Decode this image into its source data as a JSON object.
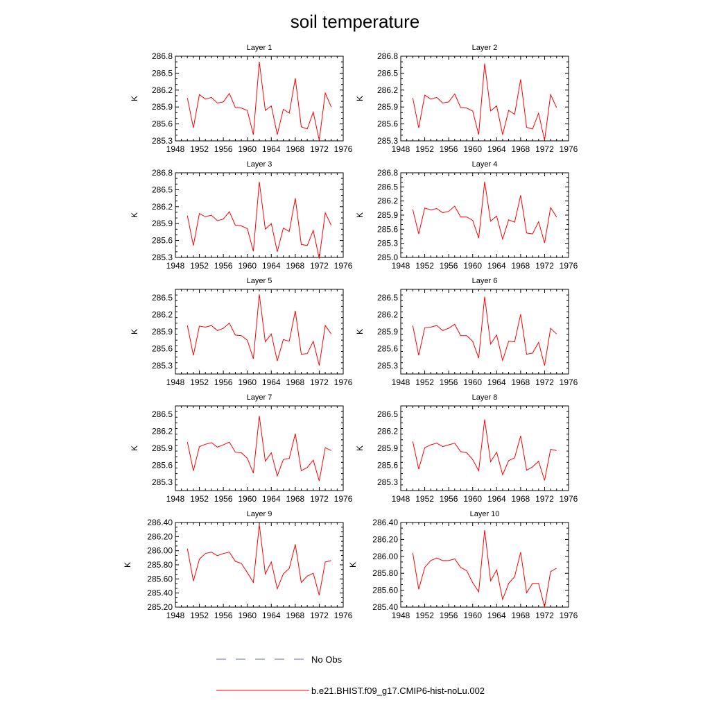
{
  "title": "soil temperature",
  "legend": {
    "entries": [
      {
        "label": "No Obs",
        "color": "#6666cc",
        "style": "dashed"
      },
      {
        "label": "b.e21.BHIST.f09_g17.CMIP6-hist-noLu.002",
        "color": "#ff0000",
        "style": "solid"
      }
    ],
    "placement": "bottom-center"
  },
  "chart_data": [
    {
      "type": "line",
      "title": "Layer 1",
      "ylabel": "K",
      "xlim": [
        1948,
        1976
      ],
      "xticks": [
        "1948",
        "1952",
        "1956",
        "1960",
        "1964",
        "1968",
        "1972",
        "1976"
      ],
      "ylim": [
        285.3,
        286.8
      ],
      "yticks": [
        "285.3",
        "285.6",
        "285.9",
        "286.2",
        "286.5",
        "286.8"
      ],
      "grid": false,
      "x": [
        1950,
        1951,
        1952,
        1953,
        1954,
        1955,
        1956,
        1957,
        1958,
        1959,
        1960,
        1961,
        1962,
        1963,
        1964,
        1965,
        1966,
        1967,
        1968,
        1969,
        1970,
        1971,
        1972,
        1973,
        1974
      ],
      "series": [
        {
          "name": "b.e21.BHIST.f09_g17.CMIP6-hist-noLu.002",
          "color": "#ff0000",
          "values": [
            286.06,
            285.53,
            286.12,
            286.04,
            286.07,
            285.97,
            285.99,
            286.14,
            285.89,
            285.88,
            285.84,
            285.41,
            286.7,
            285.84,
            285.92,
            285.41,
            285.86,
            285.79,
            286.41,
            285.55,
            285.51,
            285.81,
            285.31,
            286.15,
            285.9
          ]
        }
      ]
    },
    {
      "type": "line",
      "title": "Layer 2",
      "ylabel": "K",
      "xlim": [
        1948,
        1976
      ],
      "xticks": [
        "1948",
        "1952",
        "1956",
        "1960",
        "1964",
        "1968",
        "1972",
        "1976"
      ],
      "ylim": [
        285.3,
        286.8
      ],
      "yticks": [
        "285.3",
        "285.6",
        "285.9",
        "286.2",
        "286.5",
        "286.8"
      ],
      "grid": false,
      "x": [
        1950,
        1951,
        1952,
        1953,
        1954,
        1955,
        1956,
        1957,
        1958,
        1959,
        1960,
        1961,
        1962,
        1963,
        1964,
        1965,
        1966,
        1967,
        1968,
        1969,
        1970,
        1971,
        1972,
        1973,
        1974
      ],
      "series": [
        {
          "name": "b.e21.BHIST.f09_g17.CMIP6-hist-noLu.002",
          "color": "#ff0000",
          "values": [
            286.06,
            285.53,
            286.11,
            286.04,
            286.07,
            285.97,
            285.99,
            286.13,
            285.89,
            285.88,
            285.83,
            285.41,
            286.67,
            285.83,
            285.92,
            285.41,
            285.84,
            285.77,
            286.39,
            285.54,
            285.51,
            285.79,
            285.31,
            286.12,
            285.89
          ]
        }
      ]
    },
    {
      "type": "line",
      "title": "Layer 3",
      "ylabel": "K",
      "xlim": [
        1948,
        1976
      ],
      "xticks": [
        "1948",
        "1952",
        "1956",
        "1960",
        "1964",
        "1968",
        "1972",
        "1976"
      ],
      "ylim": [
        285.3,
        286.8
      ],
      "yticks": [
        "285.3",
        "285.6",
        "285.9",
        "286.2",
        "286.5",
        "286.8"
      ],
      "grid": false,
      "x": [
        1950,
        1951,
        1952,
        1953,
        1954,
        1955,
        1956,
        1957,
        1958,
        1959,
        1960,
        1961,
        1962,
        1963,
        1964,
        1965,
        1966,
        1967,
        1968,
        1969,
        1970,
        1971,
        1972,
        1973,
        1974
      ],
      "series": [
        {
          "name": "b.e21.BHIST.f09_g17.CMIP6-hist-noLu.002",
          "color": "#ff0000",
          "values": [
            286.04,
            285.51,
            286.08,
            286.02,
            286.05,
            285.95,
            285.98,
            286.11,
            285.87,
            285.86,
            285.81,
            285.41,
            286.64,
            285.8,
            285.9,
            285.4,
            285.82,
            285.76,
            286.35,
            285.53,
            285.51,
            285.78,
            285.28,
            286.09,
            285.87
          ]
        }
      ]
    },
    {
      "type": "line",
      "title": "Layer 4",
      "ylabel": "K",
      "xlim": [
        1948,
        1976
      ],
      "xticks": [
        "1948",
        "1952",
        "1956",
        "1960",
        "1964",
        "1968",
        "1972",
        "1976"
      ],
      "ylim": [
        285.0,
        286.8
      ],
      "yticks": [
        "285.0",
        "285.3",
        "285.6",
        "285.9",
        "286.2",
        "286.5",
        "286.8"
      ],
      "grid": false,
      "x": [
        1950,
        1951,
        1952,
        1953,
        1954,
        1955,
        1956,
        1957,
        1958,
        1959,
        1960,
        1961,
        1962,
        1963,
        1964,
        1965,
        1966,
        1967,
        1968,
        1969,
        1970,
        1971,
        1972,
        1973,
        1974
      ],
      "series": [
        {
          "name": "b.e21.BHIST.f09_g17.CMIP6-hist-noLu.002",
          "color": "#ff0000",
          "values": [
            286.02,
            285.5,
            286.05,
            286.01,
            286.04,
            285.95,
            285.98,
            286.09,
            285.86,
            285.86,
            285.79,
            285.41,
            286.61,
            285.77,
            285.88,
            285.39,
            285.8,
            285.75,
            286.32,
            285.52,
            285.5,
            285.76,
            285.31,
            286.06,
            285.86
          ]
        }
      ]
    },
    {
      "type": "line",
      "title": "Layer 5",
      "ylabel": "K",
      "xlim": [
        1948,
        1976
      ],
      "xticks": [
        "1948",
        "1952",
        "1956",
        "1960",
        "1964",
        "1968",
        "1972",
        "1976"
      ],
      "ylim": [
        285.15,
        286.65
      ],
      "yticks": [
        "285.3",
        "285.6",
        "285.9",
        "286.2",
        "286.5"
      ],
      "grid": false,
      "x": [
        1950,
        1951,
        1952,
        1953,
        1954,
        1955,
        1956,
        1957,
        1958,
        1959,
        1960,
        1961,
        1962,
        1963,
        1964,
        1965,
        1966,
        1967,
        1968,
        1969,
        1970,
        1971,
        1972,
        1973,
        1974
      ],
      "series": [
        {
          "name": "b.e21.BHIST.f09_g17.CMIP6-hist-noLu.002",
          "color": "#ff0000",
          "values": [
            286.01,
            285.48,
            286.0,
            285.98,
            286.01,
            285.92,
            285.96,
            286.05,
            285.84,
            285.83,
            285.75,
            285.42,
            286.56,
            285.72,
            285.86,
            285.38,
            285.76,
            285.73,
            286.27,
            285.5,
            285.51,
            285.73,
            285.3,
            286.01,
            285.86
          ]
        }
      ]
    },
    {
      "type": "line",
      "title": "Layer 6",
      "ylabel": "K",
      "xlim": [
        1948,
        1976
      ],
      "xticks": [
        "1948",
        "1952",
        "1956",
        "1960",
        "1964",
        "1968",
        "1972",
        "1976"
      ],
      "ylim": [
        285.15,
        286.65
      ],
      "yticks": [
        "285.3",
        "285.6",
        "285.9",
        "286.2",
        "286.5"
      ],
      "grid": false,
      "x": [
        1950,
        1951,
        1952,
        1953,
        1954,
        1955,
        1956,
        1957,
        1958,
        1959,
        1960,
        1961,
        1962,
        1963,
        1964,
        1965,
        1966,
        1967,
        1968,
        1969,
        1970,
        1971,
        1972,
        1973,
        1974
      ],
      "series": [
        {
          "name": "b.e21.BHIST.f09_g17.CMIP6-hist-noLu.002",
          "color": "#ff0000",
          "values": [
            286.01,
            285.48,
            285.97,
            285.98,
            286.01,
            285.92,
            285.96,
            286.03,
            285.83,
            285.83,
            285.73,
            285.43,
            286.52,
            285.68,
            285.84,
            285.39,
            285.73,
            285.72,
            286.21,
            285.5,
            285.52,
            285.71,
            285.3,
            285.96,
            285.86
          ]
        }
      ]
    },
    {
      "type": "line",
      "title": "Layer 7",
      "ylabel": "K",
      "xlim": [
        1948,
        1976
      ],
      "xticks": [
        "1948",
        "1952",
        "1956",
        "1960",
        "1964",
        "1968",
        "1972",
        "1976"
      ],
      "ylim": [
        285.15,
        286.65
      ],
      "yticks": [
        "285.3",
        "285.6",
        "285.9",
        "286.2",
        "286.5"
      ],
      "grid": false,
      "x": [
        1950,
        1951,
        1952,
        1953,
        1954,
        1955,
        1956,
        1957,
        1958,
        1959,
        1960,
        1961,
        1962,
        1963,
        1964,
        1965,
        1966,
        1967,
        1968,
        1969,
        1970,
        1971,
        1972,
        1973,
        1974
      ],
      "series": [
        {
          "name": "b.e21.BHIST.f09_g17.CMIP6-hist-noLu.002",
          "color": "#ff0000",
          "values": [
            286.01,
            285.5,
            285.93,
            285.97,
            286.0,
            285.92,
            285.96,
            286.01,
            285.83,
            285.82,
            285.72,
            285.46,
            286.47,
            285.67,
            285.82,
            285.41,
            285.7,
            285.72,
            286.16,
            285.5,
            285.56,
            285.69,
            285.32,
            285.91,
            285.86
          ]
        }
      ]
    },
    {
      "type": "line",
      "title": "Layer 8",
      "ylabel": "K",
      "xlim": [
        1948,
        1976
      ],
      "xticks": [
        "1948",
        "1952",
        "1956",
        "1960",
        "1964",
        "1968",
        "1972",
        "1976"
      ],
      "ylim": [
        285.15,
        286.65
      ],
      "yticks": [
        "285.3",
        "285.6",
        "285.9",
        "286.2",
        "286.5"
      ],
      "grid": false,
      "x": [
        1950,
        1951,
        1952,
        1953,
        1954,
        1955,
        1956,
        1957,
        1958,
        1959,
        1960,
        1961,
        1962,
        1963,
        1964,
        1965,
        1966,
        1967,
        1968,
        1969,
        1970,
        1971,
        1972,
        1973,
        1974
      ],
      "series": [
        {
          "name": "b.e21.BHIST.f09_g17.CMIP6-hist-noLu.002",
          "color": "#ff0000",
          "values": [
            286.02,
            285.53,
            285.91,
            285.96,
            285.99,
            285.93,
            285.96,
            285.99,
            285.84,
            285.82,
            285.7,
            285.5,
            286.41,
            285.66,
            285.83,
            285.43,
            285.68,
            285.73,
            286.12,
            285.51,
            285.57,
            285.67,
            285.33,
            285.88,
            285.86
          ]
        }
      ]
    },
    {
      "type": "line",
      "title": "Layer 9",
      "ylabel": "K",
      "xlim": [
        1948,
        1976
      ],
      "xticks": [
        "1948",
        "1952",
        "1956",
        "1960",
        "1964",
        "1968",
        "1972",
        "1976"
      ],
      "ylim": [
        285.2,
        286.4
      ],
      "yticks": [
        "285.20",
        "285.40",
        "285.60",
        "285.80",
        "286.00",
        "286.20",
        "286.40"
      ],
      "grid": false,
      "x": [
        1950,
        1951,
        1952,
        1953,
        1954,
        1955,
        1956,
        1957,
        1958,
        1959,
        1960,
        1961,
        1962,
        1963,
        1964,
        1965,
        1966,
        1967,
        1968,
        1969,
        1970,
        1971,
        1972,
        1973,
        1974
      ],
      "series": [
        {
          "name": "b.e21.BHIST.f09_g17.CMIP6-hist-noLu.002",
          "color": "#ff0000",
          "values": [
            286.03,
            285.57,
            285.88,
            285.96,
            285.98,
            285.93,
            285.96,
            285.98,
            285.85,
            285.82,
            285.69,
            285.55,
            286.37,
            285.67,
            285.84,
            285.46,
            285.67,
            285.75,
            286.09,
            285.55,
            285.64,
            285.68,
            285.37,
            285.84,
            285.86
          ]
        }
      ]
    },
    {
      "type": "line",
      "title": "Layer 10",
      "ylabel": "K",
      "xlim": [
        1948,
        1976
      ],
      "xticks": [
        "1948",
        "1952",
        "1956",
        "1960",
        "1964",
        "1968",
        "1972",
        "1976"
      ],
      "ylim": [
        285.4,
        286.4
      ],
      "yticks": [
        "285.40",
        "285.60",
        "285.80",
        "286.00",
        "286.20",
        "286.40"
      ],
      "grid": false,
      "x": [
        1950,
        1951,
        1952,
        1953,
        1954,
        1955,
        1956,
        1957,
        1958,
        1959,
        1960,
        1961,
        1962,
        1963,
        1964,
        1965,
        1966,
        1967,
        1968,
        1969,
        1970,
        1971,
        1972,
        1973,
        1974
      ],
      "series": [
        {
          "name": "b.e21.BHIST.f09_g17.CMIP6-hist-noLu.002",
          "color": "#ff0000",
          "values": [
            286.04,
            285.61,
            285.87,
            285.95,
            285.98,
            285.95,
            285.95,
            285.97,
            285.87,
            285.83,
            285.69,
            285.58,
            286.31,
            285.71,
            285.84,
            285.49,
            285.68,
            285.76,
            286.05,
            285.57,
            285.68,
            285.68,
            285.4,
            285.82,
            285.86
          ]
        }
      ]
    }
  ]
}
